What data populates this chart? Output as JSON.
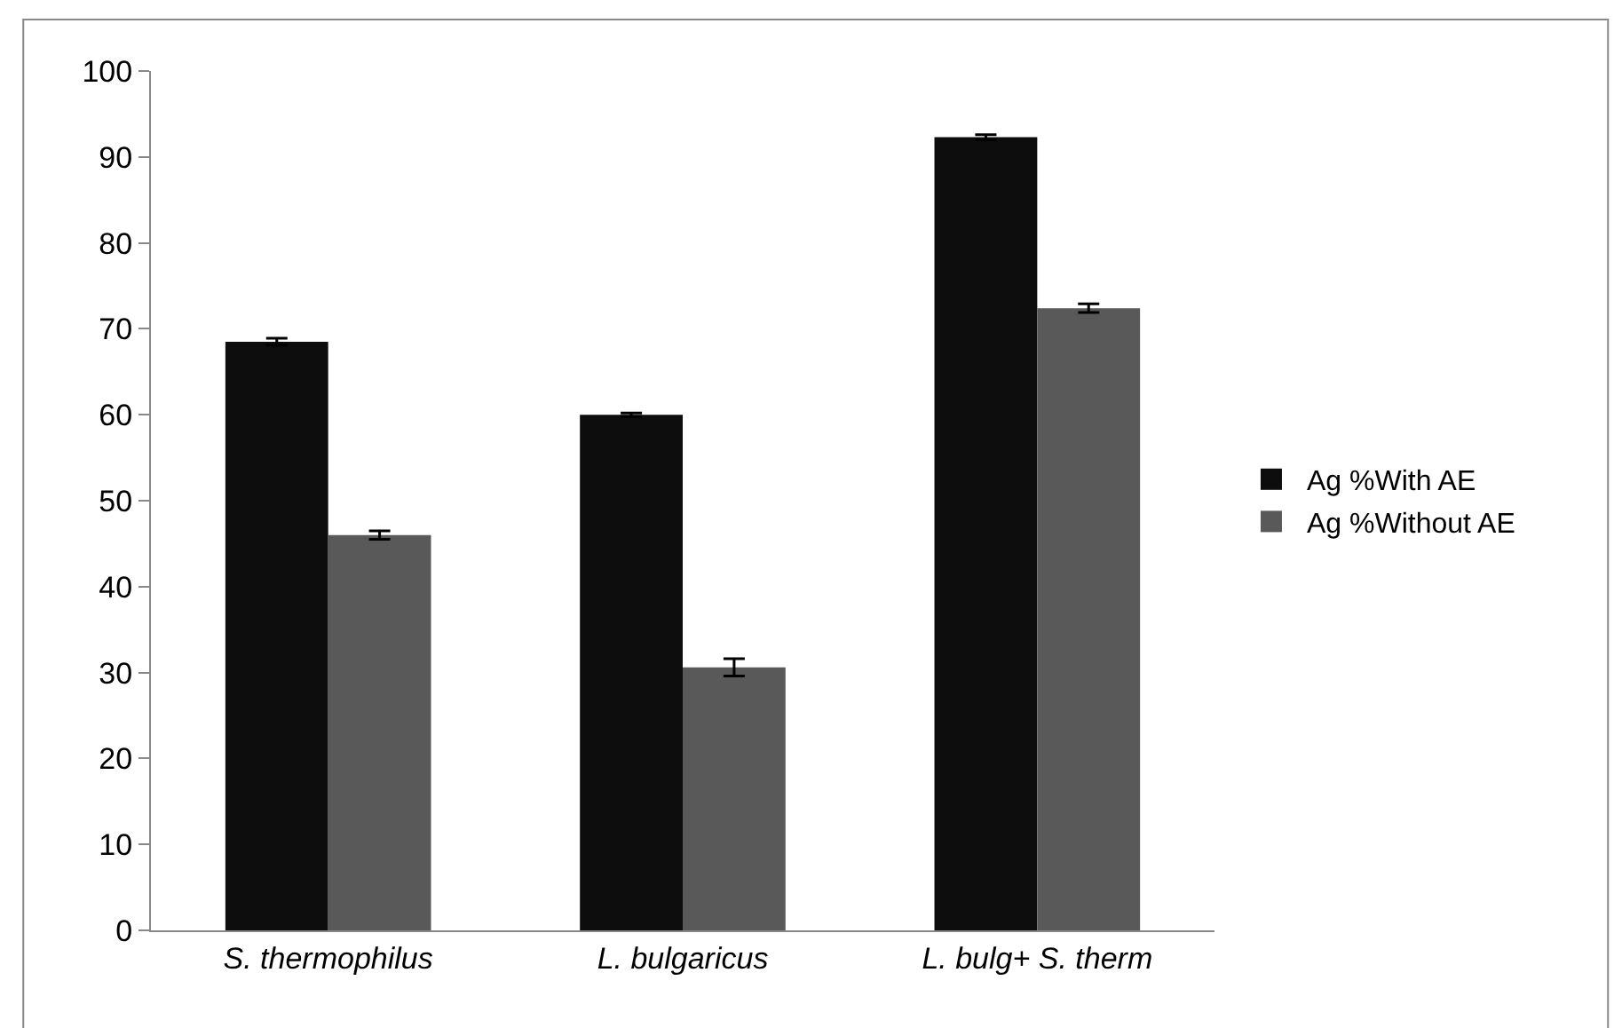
{
  "chart_data": {
    "type": "bar",
    "categories": [
      "S. thermophilus",
      "L. bulgaricus",
      "L. bulg+ S. therm"
    ],
    "series": [
      {
        "name": "Ag %With AE",
        "color": "#0d0d0d",
        "values": [
          68.5,
          60.0,
          92.3
        ],
        "errors": [
          0.4,
          0.2,
          0.3
        ]
      },
      {
        "name": "Ag %Without AE",
        "color": "#595959",
        "values": [
          46.0,
          30.6,
          72.4
        ],
        "errors": [
          0.5,
          1.0,
          0.5
        ]
      }
    ],
    "ylim": [
      0,
      100
    ],
    "yticks": [
      0,
      10,
      20,
      30,
      40,
      50,
      60,
      70,
      80,
      90,
      100
    ],
    "legend": "right"
  }
}
